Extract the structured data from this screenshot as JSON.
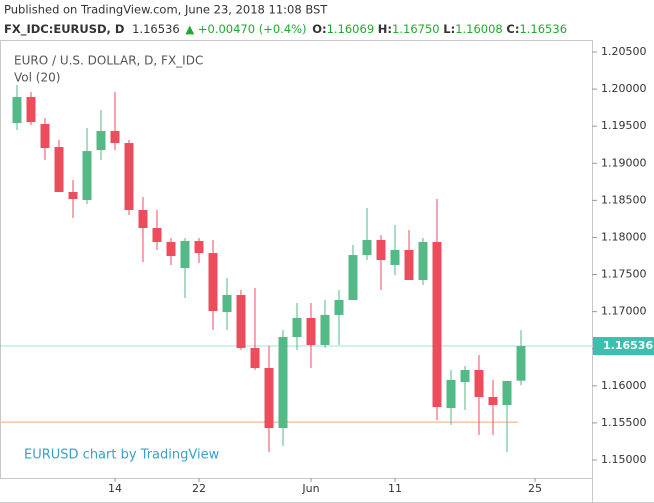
{
  "header": {
    "published": "Published on TradingView.com, June 23, 2018 11:08 BST",
    "symbol": "FX_IDC:EURUSD, D",
    "price": "1.16536",
    "arrow": "▲",
    "change": "+0.00470 (+0.4%)",
    "o_label": "O:",
    "o": "1.16069",
    "h_label": "H:",
    "h": "1.16750",
    "l_label": "L:",
    "l": "1.16008",
    "c_label": "C:",
    "c": "1.16536"
  },
  "chart_data": {
    "type": "candlestick",
    "title": "EURO / U.S. DOLLAR, D, FX_IDC",
    "subtitle": "Vol (20)",
    "watermark": "EURUSD chart by TradingView",
    "categories": [
      null,
      null,
      null,
      null,
      null,
      null,
      null,
      "14",
      null,
      null,
      null,
      null,
      null,
      "22",
      null,
      null,
      null,
      null,
      null,
      null,
      null,
      "Jun",
      null,
      null,
      null,
      null,
      null,
      "11",
      null,
      null,
      null,
      null,
      null,
      null,
      null,
      null,
      null,
      "25"
    ],
    "open": [
      1.19543,
      1.19893,
      1.19529,
      1.19219,
      1.18613,
      1.18505,
      1.19179,
      1.19435,
      1.19273,
      1.1837,
      1.18127,
      1.17939,
      1.17588,
      1.17952,
      1.1779,
      1.16995,
      1.17224,
      1.1651,
      1.1624,
      1.15431,
      1.16658,
      1.16914,
      1.1655,
      1.16955,
      1.17157,
      1.17763,
      1.17966,
      1.17629,
      1.17831,
      1.17426,
      1.17939,
      1.15701,
      1.16051,
      1.16213,
      1.15849,
      1.15741,
      1.16069,
      null
    ],
    "high": [
      1.20055,
      1.19961,
      1.1961,
      1.19314,
      1.18774,
      1.19475,
      1.19718,
      1.19961,
      1.19314,
      1.18545,
      1.1837,
      1.17993,
      1.17993,
      1.17993,
      1.17966,
      1.17453,
      1.17292,
      1.17319,
      1.16537,
      1.16752,
      1.17116,
      1.17116,
      1.17157,
      1.17292,
      1.17898,
      1.18397,
      1.18033,
      1.18168,
      1.181,
      1.17993,
      1.18518,
      1.16213,
      1.16267,
      1.16415,
      1.16078,
      1.16011,
      1.1675,
      null
    ],
    "low": [
      1.19449,
      1.19516,
      1.19044,
      1.18613,
      1.18262,
      1.18451,
      1.19044,
      1.19179,
      1.18303,
      1.17669,
      1.17831,
      1.17629,
      1.17184,
      1.17656,
      1.16752,
      1.16752,
      1.16483,
      1.16213,
      1.15108,
      1.15189,
      1.16483,
      1.1624,
      1.1651,
      1.1655,
      1.17157,
      1.17696,
      1.17292,
      1.17494,
      1.17426,
      1.17359,
      1.15539,
      1.15472,
      1.15674,
      1.15337,
      1.15337,
      1.15108,
      1.16008,
      null
    ],
    "close": [
      1.19893,
      1.19556,
      1.19206,
      1.18613,
      1.18518,
      1.19165,
      1.19435,
      1.19273,
      1.1837,
      1.18127,
      1.17939,
      1.1775,
      1.17952,
      1.1779,
      1.17008,
      1.17224,
      1.1651,
      1.1624,
      1.15431,
      1.16658,
      1.16914,
      1.1655,
      1.16955,
      1.17157,
      1.17763,
      1.17966,
      1.17696,
      1.17831,
      1.17426,
      1.17939,
      1.15714,
      1.16078,
      1.16213,
      1.15849,
      1.15741,
      1.16065,
      1.16536,
      null
    ],
    "up_color": "#53b987",
    "down_color": "#eb4d5c",
    "ylim": [
      1.14757,
      1.20662
    ],
    "yticks": [
      {
        "value": 1.15,
        "label": "1.15000"
      },
      {
        "value": 1.155,
        "label": "1.15500"
      },
      {
        "value": 1.16,
        "label": "1.16000"
      },
      {
        "value": 1.165,
        "label": "1.16500"
      },
      {
        "value": 1.17,
        "label": "1.17000"
      },
      {
        "value": 1.175,
        "label": "1.17500"
      },
      {
        "value": 1.18,
        "label": "1.18000"
      },
      {
        "value": 1.185,
        "label": "1.18500"
      },
      {
        "value": 1.19,
        "label": "1.19000"
      },
      {
        "value": 1.195,
        "label": "1.19500"
      },
      {
        "value": 1.2,
        "label": "1.20000"
      },
      {
        "value": 1.205,
        "label": "1.20500"
      }
    ],
    "last_price": {
      "value": 1.16536,
      "label": "1.16536",
      "color": "#3cbfae"
    },
    "horizontal_line": {
      "value": 1.1551,
      "color": "#f5c4ad"
    }
  }
}
